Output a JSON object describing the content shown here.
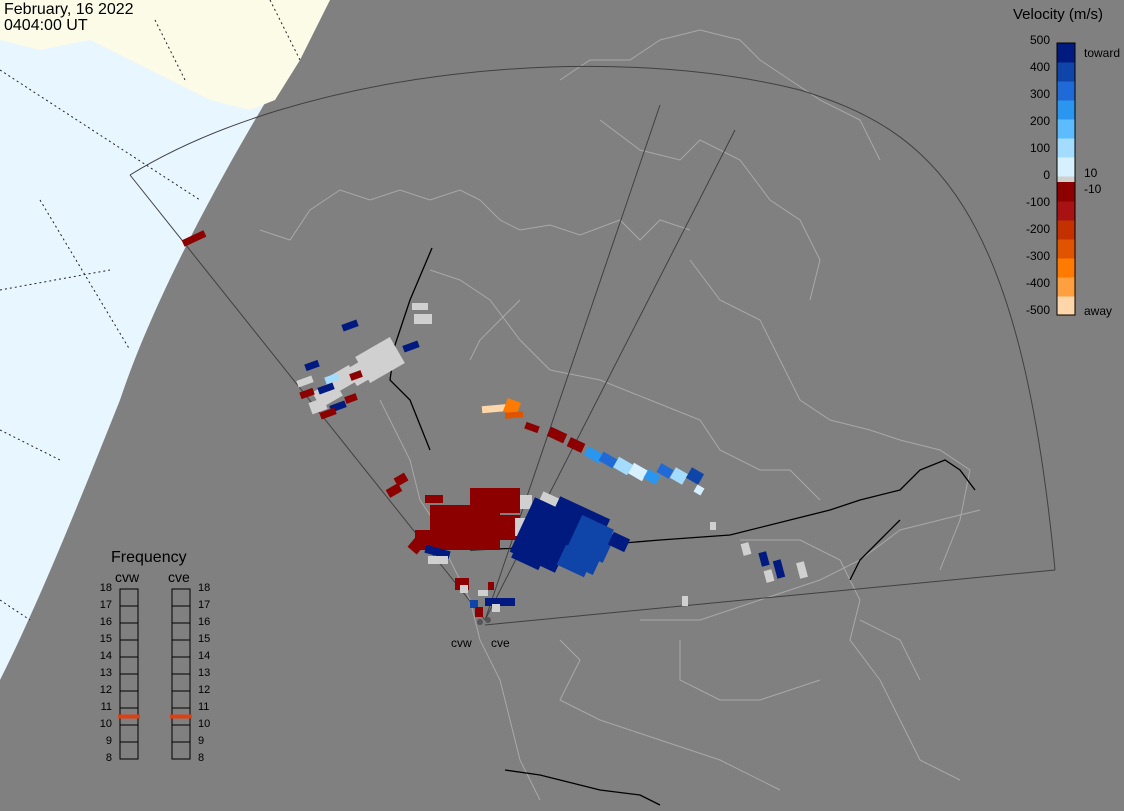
{
  "header": {
    "date": "February, 16 2022",
    "time": "0404:00 UT"
  },
  "sites": [
    {
      "id": "cvw",
      "label": "cvw"
    },
    {
      "id": "cve",
      "label": "cve"
    }
  ],
  "colorbar": {
    "title": "Velocity (m/s)",
    "ticks": [
      "500",
      "400",
      "300",
      "200",
      "100",
      "0",
      "-100",
      "-200",
      "-300",
      "-400",
      "-500"
    ],
    "near_zero": [
      "10",
      "-10"
    ],
    "toward_label": "toward",
    "away_label": "away",
    "colors": {
      "toward": [
        "#d6f0ff",
        "#a4dcff",
        "#5cbcff",
        "#2a96f0",
        "#1f6ad6",
        "#0f44a8",
        "#001a80"
      ],
      "away": [
        "#8c0000",
        "#a81212",
        "#c43000",
        "#e05400",
        "#ff7a00",
        "#ffa040",
        "#ffd6aa"
      ],
      "ground": "#d0d0d0"
    }
  },
  "frequency": {
    "title": "Frequency",
    "columns": [
      "cvw",
      "cve"
    ],
    "scale": [
      "18",
      "17",
      "16",
      "15",
      "14",
      "13",
      "12",
      "11",
      "10",
      "9",
      "8"
    ],
    "cvw_value_mhz": 10.5,
    "cve_value_mhz": 10.5,
    "marker_color": "#e04010"
  },
  "map_colors": {
    "background": "#808080",
    "ocean": "#e8f6ff",
    "land_beyond_terminator": "#fbfbe8",
    "coast": "#a8a8a8",
    "border": "#000000",
    "fov": "#404040"
  }
}
